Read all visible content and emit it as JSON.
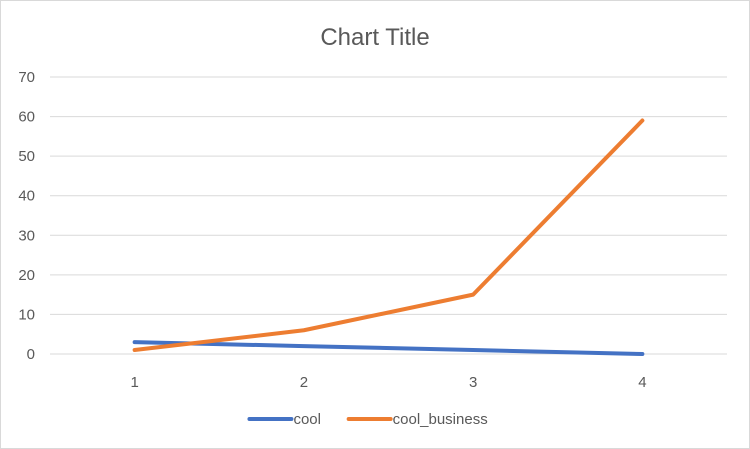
{
  "chart_data": {
    "type": "line",
    "title": "Chart Title",
    "xlabel": "",
    "ylabel": "",
    "categories": [
      "1",
      "2",
      "3",
      "4"
    ],
    "series": [
      {
        "name": "cool",
        "values": [
          3,
          2,
          1,
          0
        ],
        "color": "#4472c4"
      },
      {
        "name": "cool_business",
        "values": [
          1,
          6,
          15,
          59
        ],
        "color": "#ed7d31"
      }
    ],
    "ylim": [
      0,
      70
    ],
    "yticks": [
      0,
      10,
      20,
      30,
      40,
      50,
      60,
      70
    ],
    "grid": true,
    "legend_position": "bottom"
  }
}
